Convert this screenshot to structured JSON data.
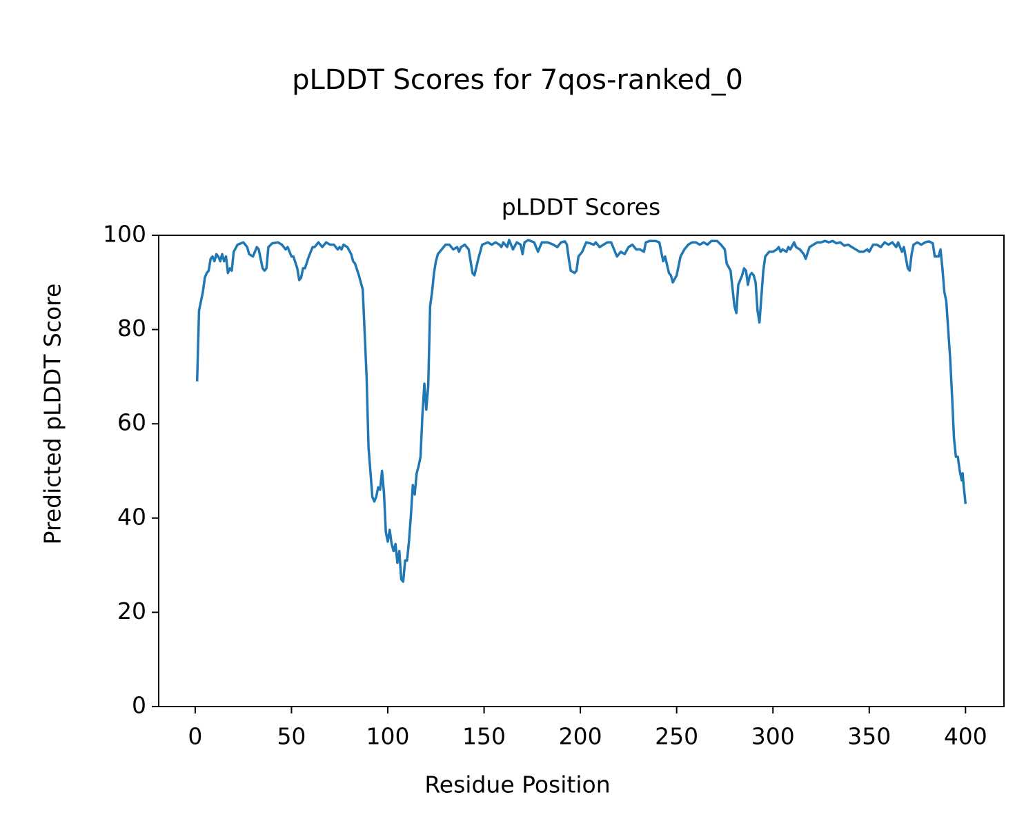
{
  "chart_data": {
    "type": "line",
    "title": "pLDDT Scores for 7qos-ranked_0",
    "subtitle": "pLDDT Scores",
    "x_label": "Residue Position",
    "y_label": "Predicted pLDDT Score",
    "color": "#1f77b4",
    "xlim": [
      -18.95,
      419.95
    ],
    "ylim": [
      0,
      100
    ],
    "xticks": [
      0,
      50,
      100,
      150,
      200,
      250,
      300,
      350,
      400
    ],
    "yticks": [
      0,
      20,
      40,
      60,
      80,
      100
    ],
    "x": [
      1,
      2,
      4,
      5,
      6,
      7,
      8,
      9,
      10,
      11,
      12,
      13,
      14,
      15,
      16,
      17,
      18,
      19,
      20,
      22,
      25,
      27,
      28,
      30,
      32,
      33,
      35,
      36,
      37,
      38,
      40,
      43,
      45,
      47,
      48,
      50,
      51,
      53,
      54,
      55,
      56,
      57,
      59,
      61,
      62,
      64,
      65,
      66,
      68,
      70,
      72,
      74,
      75,
      76,
      77,
      79,
      81,
      82,
      83,
      85,
      87,
      89,
      90,
      92,
      93,
      94,
      95,
      96,
      97,
      98,
      99,
      100,
      101,
      102,
      103,
      104,
      105,
      106,
      107,
      108,
      109,
      110,
      111,
      112,
      113,
      114,
      115,
      116,
      117,
      118,
      119,
      120,
      121,
      122,
      123,
      124,
      125,
      126,
      128,
      130,
      132,
      134,
      136,
      137,
      138,
      140,
      142,
      144,
      145,
      147,
      149,
      152,
      154,
      156,
      158,
      159,
      160,
      162,
      163,
      165,
      167,
      169,
      170,
      171,
      173,
      176,
      178,
      180,
      183,
      186,
      188,
      190,
      192,
      193,
      194,
      195,
      197,
      198,
      199,
      201,
      203,
      205,
      207,
      208,
      210,
      212,
      214,
      216,
      218,
      219,
      221,
      223,
      225,
      227,
      229,
      231,
      233,
      234,
      236,
      239,
      241,
      243,
      244,
      246,
      247,
      248,
      250,
      252,
      254,
      256,
      258,
      260,
      262,
      264,
      266,
      268,
      271,
      273,
      275,
      276,
      278,
      280,
      281,
      282,
      284,
      285,
      286,
      287,
      288,
      289,
      290,
      291,
      292,
      293,
      294,
      295,
      296,
      298,
      300,
      302,
      303,
      304,
      305,
      307,
      308,
      309,
      311,
      312,
      314,
      316,
      317,
      319,
      321,
      323,
      325,
      327,
      329,
      331,
      333,
      335,
      337,
      339,
      341,
      343,
      345,
      347,
      349,
      350,
      352,
      354,
      356,
      358,
      360,
      362,
      364,
      365,
      367,
      368,
      370,
      371,
      372,
      373,
      375,
      377,
      379,
      381,
      383,
      384,
      386,
      387,
      388,
      389,
      390,
      391,
      392,
      393,
      394,
      395,
      396,
      397,
      398,
      398.5,
      399,
      400
    ],
    "values": [
      69,
      84,
      88,
      91,
      92,
      92.5,
      95,
      95.5,
      94.5,
      96,
      95.5,
      94.5,
      96,
      94.5,
      95.5,
      92,
      93,
      92.5,
      96.5,
      98,
      98.5,
      97.5,
      96,
      95.5,
      97.5,
      97,
      93,
      92.5,
      93,
      97.5,
      98.3,
      98.5,
      98,
      97,
      97.5,
      95.5,
      95.5,
      93,
      90.5,
      91,
      93,
      93,
      95.5,
      97.5,
      97.5,
      98.5,
      98,
      97.5,
      98.5,
      98,
      98,
      97,
      97.5,
      97,
      98,
      97.5,
      96,
      94.5,
      94,
      91.5,
      88.5,
      70,
      55,
      44.5,
      43.5,
      44.5,
      46.5,
      46,
      50,
      45.5,
      37,
      35,
      37.5,
      34.5,
      33,
      34.5,
      30.5,
      33,
      27,
      26.5,
      31,
      31,
      35,
      40.5,
      47,
      45,
      49.5,
      51,
      53,
      62,
      68.5,
      63,
      68,
      85,
      88,
      92,
      94.5,
      96,
      97,
      98,
      98,
      97,
      97.5,
      96.5,
      97.5,
      98,
      97,
      92,
      91.5,
      95,
      98,
      98.5,
      98,
      98.5,
      98,
      97.5,
      98.5,
      97.5,
      99,
      97,
      98.5,
      98,
      96,
      98.5,
      99,
      98.5,
      96.5,
      98.5,
      98.5,
      98,
      97.5,
      98.5,
      98.7,
      98,
      95,
      92.5,
      92,
      92.5,
      95.5,
      96.5,
      98.5,
      98.3,
      98,
      98.5,
      97.5,
      98,
      98.5,
      98.5,
      96.5,
      95.5,
      96.5,
      96,
      97.5,
      98,
      97,
      97,
      96.5,
      98.5,
      98.8,
      98.8,
      98.5,
      94.5,
      95.5,
      92,
      91.5,
      90,
      91.5,
      95.5,
      97,
      98,
      98.5,
      98.5,
      98,
      98.5,
      98,
      98.8,
      98.8,
      98,
      97,
      94,
      92.5,
      85,
      83.5,
      89.5,
      91.5,
      93,
      92.5,
      89.5,
      91.5,
      92,
      91.5,
      90,
      84,
      81.5,
      87,
      92.5,
      95.5,
      96.5,
      96.5,
      97,
      97.5,
      96.5,
      97,
      96.5,
      97.5,
      97,
      98.5,
      97.5,
      97,
      96,
      95,
      97.5,
      98,
      98.5,
      98.5,
      98.8,
      98.5,
      98.8,
      98.3,
      98.5,
      97.8,
      98,
      97.5,
      97,
      96.5,
      96.5,
      97,
      96.5,
      98,
      98,
      97.5,
      98.5,
      98,
      98.5,
      97.5,
      98.5,
      96.5,
      97.5,
      93,
      92.5,
      96,
      98,
      98.5,
      98,
      98.5,
      98.7,
      98.3,
      95.5,
      95.5,
      97,
      93,
      88,
      86,
      80,
      74,
      66,
      57,
      53,
      53,
      50,
      48,
      49.5,
      47,
      43
    ]
  }
}
